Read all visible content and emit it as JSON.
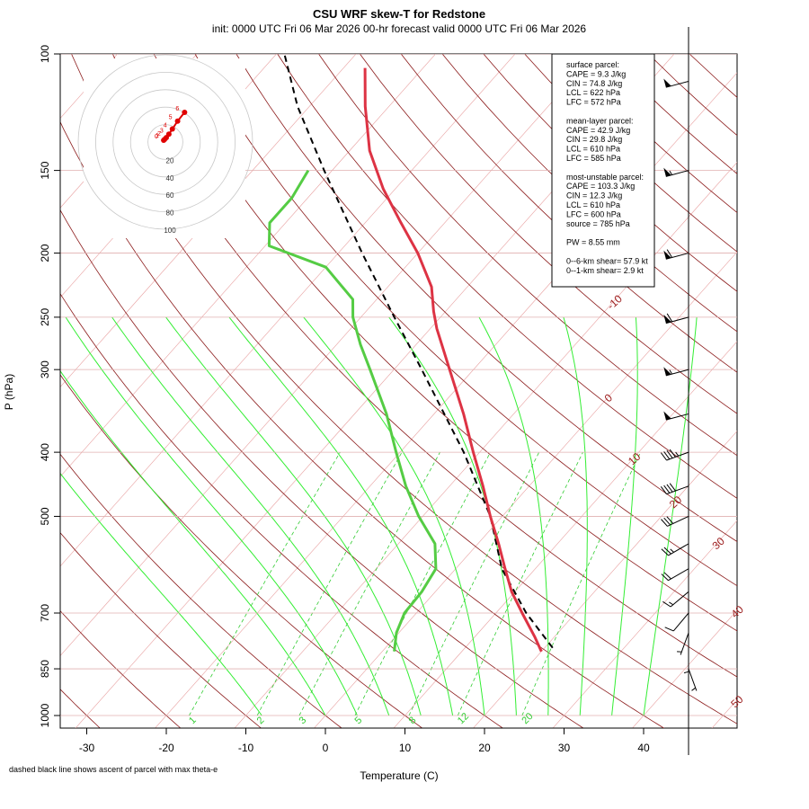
{
  "title": "CSU WRF skew-T for Redstone",
  "subtitle": "init: 0000 UTC Fri 06 Mar 2026     00-hr forecast valid 0000 UTC Fri 06 Mar 2026",
  "footnote": "dashed black line shows ascent of parcel with max theta-e",
  "colors": {
    "temperature": "#dd3344",
    "dewpoint": "#55cc44",
    "parcel": "#000000",
    "isotherm_dry_adiabat": "#8b1a1a",
    "moist_adiabat": "#33ee33",
    "mixing_ratio": "#33cc33",
    "hodograph": "#e00000"
  },
  "panel": {
    "lines": [
      "surface parcel:",
      "CAPE = 9.3 J/kg",
      "CIN = 74.8 J/kg",
      "LCL = 622 hPa",
      "LFC = 572 hPa",
      "",
      "mean-layer parcel:",
      "CAPE = 42.9 J/kg",
      "CIN = 29.8 J/kg",
      "LCL = 610 hPa",
      "LFC = 585 hPa",
      "",
      "most-unstable parcel:",
      "CAPE = 103.3 J/kg",
      "CIN = 12.3 J/kg",
      "LCL = 610 hPa",
      "LFC = 600 hPa",
      "source = 785 hPa",
      "",
      "PW =  8.55 mm",
      "",
      "0--6-km shear= 57.9 kt",
      "0--1-km shear= 2.9 kt"
    ]
  },
  "chart_data": {
    "type": "line",
    "title": "CSU WRF skew-T for Redstone",
    "xlabel": "Temperature (C)",
    "ylabel": "P (hPa)",
    "xlim": [
      -33,
      45
    ],
    "x_ticks": [
      -30,
      -20,
      -10,
      0,
      10,
      20,
      30,
      40
    ],
    "pressure_range_hPa": [
      100,
      1000
    ],
    "pressure_ticks": [
      100,
      150,
      200,
      250,
      300,
      400,
      500,
      700,
      850,
      1000
    ],
    "isotherm_labels": [
      -10,
      0,
      10,
      20,
      30,
      40,
      50
    ],
    "mixing_ratio_labels_gkg": [
      1,
      2,
      3,
      5,
      8,
      12,
      20
    ],
    "temperature_profile": [
      {
        "p": 800,
        "t": 20.0
      },
      {
        "p": 760,
        "t": 17.5
      },
      {
        "p": 700,
        "t": 13.3
      },
      {
        "p": 650,
        "t": 9.6
      },
      {
        "p": 600,
        "t": 6.2
      },
      {
        "p": 550,
        "t": 2.6
      },
      {
        "p": 500,
        "t": -1.5
      },
      {
        "p": 450,
        "t": -5.8
      },
      {
        "p": 400,
        "t": -10.8
      },
      {
        "p": 350,
        "t": -16.3
      },
      {
        "p": 300,
        "t": -23.0
      },
      {
        "p": 260,
        "t": -29.2
      },
      {
        "p": 245,
        "t": -31.5
      },
      {
        "p": 225,
        "t": -34.5
      },
      {
        "p": 200,
        "t": -40.0
      },
      {
        "p": 180,
        "t": -45.5
      },
      {
        "p": 160,
        "t": -51.5
      },
      {
        "p": 140,
        "t": -57.5
      },
      {
        "p": 120,
        "t": -63.0
      },
      {
        "p": 105,
        "t": -67.3
      }
    ],
    "dewpoint_profile": [
      {
        "p": 800,
        "t": 1.5
      },
      {
        "p": 750,
        "t": -0.3
      },
      {
        "p": 700,
        "t": -1.5
      },
      {
        "p": 650,
        "t": -1.7
      },
      {
        "p": 600,
        "t": -2.5
      },
      {
        "p": 550,
        "t": -5.4
      },
      {
        "p": 500,
        "t": -10.5
      },
      {
        "p": 450,
        "t": -15.5
      },
      {
        "p": 400,
        "t": -20.5
      },
      {
        "p": 350,
        "t": -26.0
      },
      {
        "p": 300,
        "t": -33.0
      },
      {
        "p": 275,
        "t": -37.0
      },
      {
        "p": 250,
        "t": -41.0
      },
      {
        "p": 235,
        "t": -43.0
      },
      {
        "p": 210,
        "t": -50.0
      },
      {
        "p": 195,
        "t": -59.5
      },
      {
        "p": 180,
        "t": -62.0
      },
      {
        "p": 165,
        "t": -62.0
      },
      {
        "p": 150,
        "t": -63.0
      }
    ],
    "parcel_profile": [
      {
        "p": 790,
        "t": 21.0
      },
      {
        "p": 700,
        "t": 13.8
      },
      {
        "p": 600,
        "t": 5.8
      },
      {
        "p": 500,
        "t": -1.5
      },
      {
        "p": 400,
        "t": -12.0
      },
      {
        "p": 300,
        "t": -26.5
      },
      {
        "p": 250,
        "t": -35.8
      },
      {
        "p": 200,
        "t": -47.0
      },
      {
        "p": 150,
        "t": -61.0
      },
      {
        "p": 120,
        "t": -71.5
      },
      {
        "p": 100,
        "t": -79.0
      }
    ],
    "hodograph": {
      "rings_kt": [
        20,
        40,
        60,
        80,
        100
      ],
      "points": [
        {
          "label": "0",
          "u": -2,
          "v": 2
        },
        {
          "label": "1",
          "u": -1,
          "v": 3
        },
        {
          "label": "2",
          "u": 1,
          "v": 5
        },
        {
          "label": "3",
          "u": 4,
          "v": 9
        },
        {
          "label": "4",
          "u": 8,
          "v": 15
        },
        {
          "label": "5",
          "u": 14,
          "v": 24
        },
        {
          "label": "6",
          "u": 22,
          "v": 34
        }
      ]
    },
    "wind_barbs": [
      {
        "p": 850,
        "dir": 160,
        "spd": 5
      },
      {
        "p": 800,
        "dir": 180,
        "spd": 5
      },
      {
        "p": 750,
        "dir": 200,
        "spd": 5
      },
      {
        "p": 700,
        "dir": 220,
        "spd": 10
      },
      {
        "p": 650,
        "dir": 230,
        "spd": 15
      },
      {
        "p": 600,
        "dir": 240,
        "spd": 20
      },
      {
        "p": 550,
        "dir": 240,
        "spd": 25
      },
      {
        "p": 500,
        "dir": 245,
        "spd": 30
      },
      {
        "p": 450,
        "dir": 250,
        "spd": 40
      },
      {
        "p": 400,
        "dir": 250,
        "spd": 45
      },
      {
        "p": 350,
        "dir": 255,
        "spd": 50
      },
      {
        "p": 300,
        "dir": 255,
        "spd": 55
      },
      {
        "p": 250,
        "dir": 255,
        "spd": 60
      },
      {
        "p": 200,
        "dir": 255,
        "spd": 60
      },
      {
        "p": 150,
        "dir": 255,
        "spd": 55
      },
      {
        "p": 110,
        "dir": 255,
        "spd": 50
      }
    ]
  }
}
